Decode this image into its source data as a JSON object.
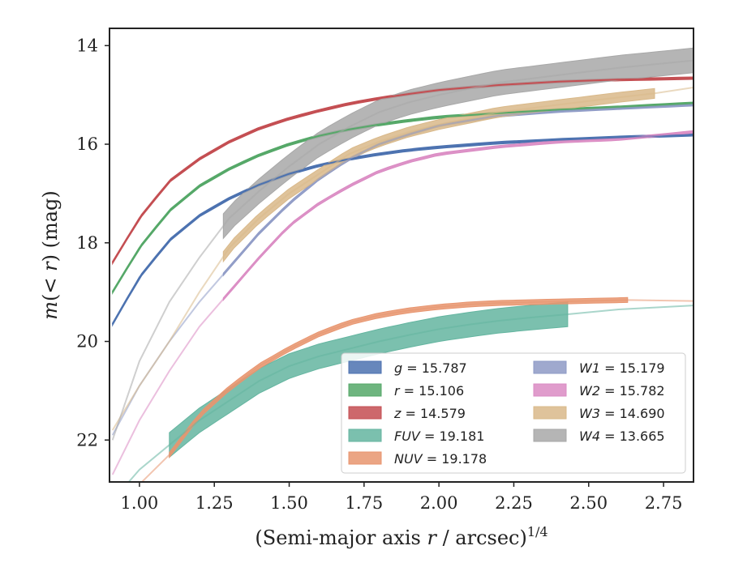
{
  "chart_data": {
    "type": "line",
    "xlabel": "(Semi-major axis r / arcsec)^{1/4}",
    "ylabel": "m(< r) (mag)",
    "xlim": [
      0.9,
      2.85
    ],
    "ylim": [
      22.85,
      13.65
    ],
    "y_inverted": true,
    "grid": false,
    "legend_position": "lower-right",
    "x_ticks": [
      "1.00",
      "1.25",
      "1.50",
      "1.75",
      "2.00",
      "2.25",
      "2.50",
      "2.75"
    ],
    "y_ticks": [
      "14",
      "16",
      "18",
      "20",
      "22"
    ],
    "series": [
      {
        "name": "g",
        "legend_label": "g = 15.787",
        "color": "#4c72b0",
        "total_mag": 15.787,
        "band_width": 0.05,
        "x": [
          0.91,
          1.0,
          1.1,
          1.2,
          1.3,
          1.4,
          1.5,
          1.6,
          1.7,
          1.8,
          1.9,
          2.0,
          2.2,
          2.4,
          2.6,
          2.85
        ],
        "y": [
          19.65,
          18.7,
          17.95,
          17.45,
          17.1,
          16.82,
          16.6,
          16.43,
          16.3,
          16.2,
          16.12,
          16.06,
          15.97,
          15.91,
          15.86,
          15.81
        ]
      },
      {
        "name": "r",
        "legend_label": "r = 15.106",
        "color": "#55a868",
        "total_mag": 15.106,
        "band_width": 0.05,
        "x": [
          0.91,
          1.0,
          1.1,
          1.2,
          1.3,
          1.4,
          1.5,
          1.6,
          1.7,
          1.8,
          1.9,
          2.0,
          2.2,
          2.4,
          2.6,
          2.85
        ],
        "y": [
          19.0,
          18.1,
          17.35,
          16.85,
          16.5,
          16.22,
          16.0,
          15.83,
          15.7,
          15.6,
          15.52,
          15.45,
          15.37,
          15.3,
          15.25,
          15.17
        ]
      },
      {
        "name": "z",
        "legend_label": "z = 14.579",
        "color": "#c44e52",
        "total_mag": 14.579,
        "band_width": 0.05,
        "x": [
          0.91,
          1.0,
          1.1,
          1.2,
          1.3,
          1.4,
          1.5,
          1.6,
          1.7,
          1.8,
          1.9,
          2.0,
          2.2,
          2.4,
          2.6,
          2.85
        ],
        "y": [
          18.4,
          17.5,
          16.75,
          16.3,
          15.95,
          15.68,
          15.48,
          15.32,
          15.18,
          15.07,
          14.98,
          14.9,
          14.8,
          14.73,
          14.69,
          14.66
        ]
      },
      {
        "name": "FUV",
        "legend_label": "FUV = 19.181",
        "color": "#64b5a0",
        "total_mag": 19.181,
        "band_width": 0.5,
        "band_x_range": [
          1.1,
          2.43
        ],
        "x": [
          0.9,
          1.0,
          1.1,
          1.2,
          1.3,
          1.4,
          1.5,
          1.6,
          1.7,
          1.8,
          1.9,
          2.0,
          2.1,
          2.2,
          2.3,
          2.43,
          2.6,
          2.85
        ],
        "y": [
          23.3,
          22.6,
          22.1,
          21.6,
          21.2,
          20.8,
          20.5,
          20.3,
          20.15,
          20.0,
          19.87,
          19.75,
          19.66,
          19.58,
          19.52,
          19.45,
          19.35,
          19.27
        ]
      },
      {
        "name": "NUV",
        "legend_label": "NUV = 19.178",
        "color": "#e8956f",
        "total_mag": 19.178,
        "band_width": 0.1,
        "band_x_range": [
          1.1,
          2.63
        ],
        "x": [
          0.9,
          1.0,
          1.1,
          1.2,
          1.3,
          1.4,
          1.5,
          1.6,
          1.7,
          1.8,
          1.9,
          2.0,
          2.1,
          2.2,
          2.4,
          2.63,
          2.85
        ],
        "y": [
          23.5,
          22.9,
          22.3,
          21.5,
          20.95,
          20.5,
          20.15,
          19.85,
          19.62,
          19.47,
          19.37,
          19.3,
          19.25,
          19.22,
          19.19,
          19.16,
          19.18
        ]
      },
      {
        "name": "W1",
        "legend_label": "W1 = 15.179",
        "color": "#8e9ac6",
        "total_mag": 15.179,
        "band_width": 0.05,
        "band_x_range": [
          1.28,
          2.85
        ],
        "x": [
          0.91,
          1.0,
          1.1,
          1.2,
          1.3,
          1.4,
          1.5,
          1.6,
          1.7,
          1.8,
          1.9,
          2.0,
          2.2,
          2.4,
          2.6,
          2.85
        ],
        "y": [
          21.9,
          20.9,
          20.0,
          19.2,
          18.5,
          17.8,
          17.2,
          16.7,
          16.3,
          16.0,
          15.8,
          15.62,
          15.42,
          15.33,
          15.27,
          15.2
        ]
      },
      {
        "name": "W2",
        "legend_label": "W2 = 15.782",
        "color": "#da8bc3",
        "total_mag": 15.782,
        "band_width": 0.05,
        "band_x_range": [
          1.28,
          2.85
        ],
        "x": [
          0.91,
          1.0,
          1.1,
          1.2,
          1.3,
          1.4,
          1.5,
          1.6,
          1.7,
          1.8,
          1.9,
          2.0,
          2.2,
          2.4,
          2.6,
          2.85
        ],
        "y": [
          22.7,
          21.6,
          20.6,
          19.7,
          19.0,
          18.3,
          17.65,
          17.2,
          16.85,
          16.55,
          16.35,
          16.2,
          16.05,
          15.95,
          15.9,
          15.75
        ]
      },
      {
        "name": "W3",
        "legend_label": "W3 = 14.690",
        "color": "#d9b98a",
        "total_mag": 14.69,
        "band_width": 0.2,
        "band_x_range": [
          1.28,
          2.72
        ],
        "x": [
          0.91,
          1.0,
          1.1,
          1.2,
          1.3,
          1.4,
          1.5,
          1.6,
          1.7,
          1.8,
          1.9,
          2.0,
          2.2,
          2.4,
          2.6,
          2.72,
          2.85
        ],
        "y": [
          21.8,
          20.9,
          20.0,
          19.0,
          18.1,
          17.5,
          17.0,
          16.6,
          16.2,
          15.95,
          15.75,
          15.6,
          15.35,
          15.2,
          15.05,
          14.97,
          14.85
        ]
      },
      {
        "name": "W4",
        "legend_label": "W4 = 13.665",
        "color": "#a8a8a8",
        "total_mag": 13.665,
        "band_width": 0.5,
        "band_x_range": [
          1.28,
          2.85
        ],
        "x": [
          0.91,
          1.0,
          1.1,
          1.2,
          1.3,
          1.4,
          1.5,
          1.6,
          1.7,
          1.8,
          1.9,
          2.0,
          2.2,
          2.4,
          2.6,
          2.85
        ],
        "y": [
          22.0,
          20.4,
          19.2,
          18.3,
          17.5,
          16.95,
          16.45,
          16.0,
          15.65,
          15.35,
          15.15,
          15.0,
          14.75,
          14.6,
          14.45,
          14.3
        ]
      }
    ]
  }
}
